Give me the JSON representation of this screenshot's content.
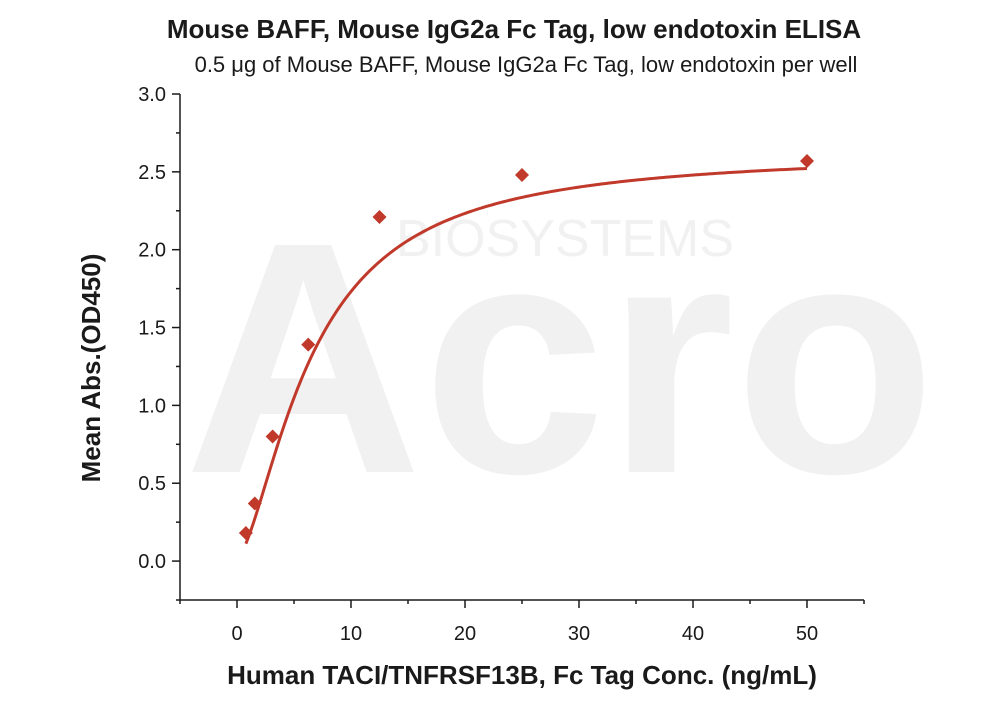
{
  "watermark": {
    "main": "Acro",
    "sub": "BIOSYSTEMS"
  },
  "chart_data": {
    "type": "scatter",
    "title": "Mouse BAFF, Mouse IgG2a Fc Tag, low endotoxin ELISA",
    "subtitle": "0.5 μg of Mouse BAFF, Mouse IgG2a Fc Tag, low endotoxin per well",
    "xlabel": "Human TACI/TNFRSF13B, Fc Tag Conc. (ng/mL)",
    "ylabel": "Mean Abs.(OD450)",
    "xlim": [
      -5,
      55
    ],
    "ylim": [
      -0.25,
      3.0
    ],
    "x_ticks": [
      0,
      10,
      20,
      30,
      40,
      50
    ],
    "y_ticks": [
      0.0,
      0.5,
      1.0,
      1.5,
      2.0,
      2.5,
      3.0
    ],
    "grid": false,
    "legend": "none",
    "color": "#c0392b",
    "series": [
      {
        "marker": "diamond",
        "x": [
          0.78,
          1.56,
          3.125,
          6.25,
          12.5,
          25,
          50
        ],
        "y": [
          0.18,
          0.37,
          0.8,
          1.39,
          2.21,
          2.48,
          2.57
        ]
      }
    ],
    "fit_curve": {
      "model": "4PL",
      "bottom": 0.02,
      "top": 2.63,
      "ec50": 6.6,
      "hill": 1.55
    }
  }
}
